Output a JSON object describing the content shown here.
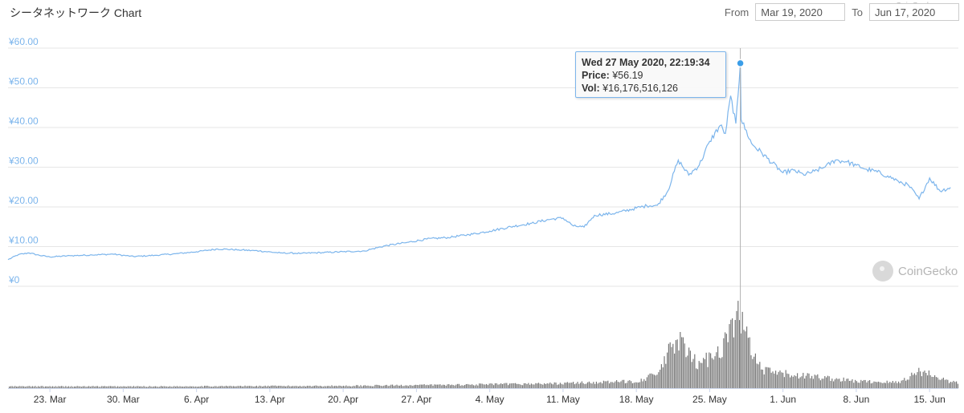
{
  "header": {
    "title": "シータネットワーク Chart",
    "from_label": "From",
    "from_value": "Mar 19, 2020",
    "to_label": "To",
    "to_value": "Jun 17, 2020",
    "watermark_top": "CoinGecko.com"
  },
  "tooltip": {
    "date": "Wed 27 May 2020, 22:19:34",
    "price_label": "Price:",
    "price_value": "¥56.19",
    "vol_label": "Vol:",
    "vol_value": "¥16,176,516,126"
  },
  "logo": {
    "text": "CoinGecko"
  },
  "colors": {
    "line": "#7cb5ec",
    "volume": "#777777",
    "grid": "#e6e6e6",
    "accent": "#3b9ee8"
  },
  "chart_data": {
    "type": "line",
    "title": "シータネットワーク Chart",
    "xlabel": "",
    "ylabel": "",
    "ylim": [
      0,
      60
    ],
    "y_ticks": [
      {
        "value": 0,
        "label": "¥0"
      },
      {
        "value": 10,
        "label": "¥10.00"
      },
      {
        "value": 20,
        "label": "¥20.00"
      },
      {
        "value": 30,
        "label": "¥30.00"
      },
      {
        "value": 40,
        "label": "¥40.00"
      },
      {
        "value": 50,
        "label": "¥50.00"
      },
      {
        "value": 60,
        "label": "¥60.00"
      }
    ],
    "x_ticks": [
      {
        "date": "2020-03-23",
        "label": "23. Mar"
      },
      {
        "date": "2020-03-30",
        "label": "30. Mar"
      },
      {
        "date": "2020-04-06",
        "label": "6. Apr"
      },
      {
        "date": "2020-04-13",
        "label": "13. Apr"
      },
      {
        "date": "2020-04-20",
        "label": "20. Apr"
      },
      {
        "date": "2020-04-27",
        "label": "27. Apr"
      },
      {
        "date": "2020-05-04",
        "label": "4. May"
      },
      {
        "date": "2020-05-11",
        "label": "11. May"
      },
      {
        "date": "2020-05-18",
        "label": "18. May"
      },
      {
        "date": "2020-05-25",
        "label": "25. May"
      },
      {
        "date": "2020-06-01",
        "label": "1. Jun"
      },
      {
        "date": "2020-06-08",
        "label": "8. Jun"
      },
      {
        "date": "2020-06-15",
        "label": "15. Jun"
      }
    ],
    "x_range": [
      "2020-03-19",
      "2020-06-17"
    ],
    "highlight": {
      "date": "2020-05-27T22:19:34",
      "price": 56.19
    },
    "series": [
      {
        "values": [
          [
            "2020-03-19",
            6.7
          ],
          [
            "2020-03-20",
            8.0
          ],
          [
            "2020-03-21",
            8.4
          ],
          [
            "2020-03-22",
            7.8
          ],
          [
            "2020-03-23",
            7.4
          ],
          [
            "2020-03-25",
            7.7
          ],
          [
            "2020-03-27",
            7.9
          ],
          [
            "2020-03-29",
            8.1
          ],
          [
            "2020-03-31",
            7.5
          ],
          [
            "2020-04-02",
            7.8
          ],
          [
            "2020-04-04",
            8.2
          ],
          [
            "2020-04-06",
            8.7
          ],
          [
            "2020-04-08",
            9.4
          ],
          [
            "2020-04-10",
            9.2
          ],
          [
            "2020-04-12",
            8.9
          ],
          [
            "2020-04-14",
            8.4
          ],
          [
            "2020-04-16",
            8.3
          ],
          [
            "2020-04-18",
            8.5
          ],
          [
            "2020-04-20",
            8.7
          ],
          [
            "2020-04-22",
            8.9
          ],
          [
            "2020-04-24",
            10.2
          ],
          [
            "2020-04-26",
            11.0
          ],
          [
            "2020-04-28",
            11.9
          ],
          [
            "2020-04-30",
            12.3
          ],
          [
            "2020-05-02",
            13.0
          ],
          [
            "2020-05-04",
            13.9
          ],
          [
            "2020-05-06",
            15.0
          ],
          [
            "2020-05-08",
            15.9
          ],
          [
            "2020-05-10",
            17.0
          ],
          [
            "2020-05-11",
            17.2
          ],
          [
            "2020-05-12",
            15.2
          ],
          [
            "2020-05-13",
            14.9
          ],
          [
            "2020-05-14",
            17.9
          ],
          [
            "2020-05-16",
            18.4
          ],
          [
            "2020-05-18",
            19.7
          ],
          [
            "2020-05-19",
            20.3
          ],
          [
            "2020-05-20",
            20.4
          ],
          [
            "2020-05-21",
            24.0
          ],
          [
            "2020-05-22",
            31.8
          ],
          [
            "2020-05-23",
            28.0
          ],
          [
            "2020-05-24",
            30.5
          ],
          [
            "2020-05-25",
            36.5
          ],
          [
            "2020-05-26",
            40.5
          ],
          [
            "2020-05-26T12:00",
            38.5
          ],
          [
            "2020-05-27",
            48.0
          ],
          [
            "2020-05-27T12:00",
            41.0
          ],
          [
            "2020-05-27T22:19:34",
            56.19
          ],
          [
            "2020-05-28",
            42.0
          ],
          [
            "2020-05-29",
            36.0
          ],
          [
            "2020-05-30",
            33.5
          ],
          [
            "2020-05-31",
            31.0
          ],
          [
            "2020-06-01",
            28.6
          ],
          [
            "2020-06-02",
            29.3
          ],
          [
            "2020-06-03",
            28.0
          ],
          [
            "2020-06-04",
            29.0
          ],
          [
            "2020-06-05",
            30.0
          ],
          [
            "2020-06-06",
            31.8
          ],
          [
            "2020-06-07",
            31.4
          ],
          [
            "2020-06-08",
            30.5
          ],
          [
            "2020-06-09",
            29.5
          ],
          [
            "2020-06-10",
            28.8
          ],
          [
            "2020-06-11",
            27.8
          ],
          [
            "2020-06-12",
            26.5
          ],
          [
            "2020-06-13",
            25.4
          ],
          [
            "2020-06-14",
            22.0
          ],
          [
            "2020-06-15",
            27.3
          ],
          [
            "2020-06-16",
            24.0
          ],
          [
            "2020-06-17",
            24.9
          ]
        ]
      }
    ],
    "volume": [
      [
        "2020-03-19",
        0.3
      ],
      [
        "2020-04-01",
        0.3
      ],
      [
        "2020-04-20",
        0.4
      ],
      [
        "2020-05-01",
        0.6
      ],
      [
        "2020-05-10",
        0.8
      ],
      [
        "2020-05-18",
        1.2
      ],
      [
        "2020-05-20",
        2.5
      ],
      [
        "2020-05-21",
        6.0
      ],
      [
        "2020-05-22",
        8.5
      ],
      [
        "2020-05-23",
        5.5
      ],
      [
        "2020-05-24",
        4.0
      ],
      [
        "2020-05-25",
        5.5
      ],
      [
        "2020-05-26",
        7.0
      ],
      [
        "2020-05-27",
        10.0
      ],
      [
        "2020-05-27T22:19:34",
        13.0
      ],
      [
        "2020-05-28",
        12.0
      ],
      [
        "2020-05-29",
        6.0
      ],
      [
        "2020-05-30",
        3.0
      ],
      [
        "2020-06-01",
        2.5
      ],
      [
        "2020-06-04",
        2.0
      ],
      [
        "2020-06-08",
        1.2
      ],
      [
        "2020-06-12",
        1.0
      ],
      [
        "2020-06-14",
        3.0
      ],
      [
        "2020-06-15",
        2.5
      ],
      [
        "2020-06-17",
        1.0
      ]
    ]
  }
}
